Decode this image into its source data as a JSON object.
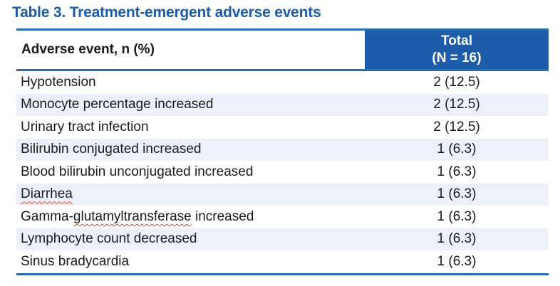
{
  "page": {
    "title": "Table 3. Treatment-emergent adverse events"
  },
  "colors": {
    "accent_blue": "#1D5CA8",
    "rule_blue": "#2A6AAE",
    "title_blue": "#1A5CA9",
    "row_stripe": "#ECF1F9",
    "spellcheck_red": "#E8402A",
    "body_text": "#1A1A1A",
    "header_text": "#FFFFFF"
  },
  "table": {
    "columns": {
      "event_header": "Adverse event, n (%)",
      "total_header_line1": "Total",
      "total_header_line2": "(N = 16)"
    },
    "rows": [
      {
        "event": "Hypotension",
        "value": "2 (12.5)"
      },
      {
        "event": "Monocyte percentage increased",
        "value": "2 (12.5)"
      },
      {
        "event": "Urinary tract infection",
        "value": "2 (12.5)"
      },
      {
        "event": "Bilirubin conjugated increased",
        "value": "1 (6.3)"
      },
      {
        "event": "Blood bilirubin unconjugated increased",
        "value": "1 (6.3)"
      },
      {
        "event": "Diarrhea",
        "value": "1 (6.3)",
        "spellcheck_flagged": "Diarrhea"
      },
      {
        "event_prefix": "Gamma-",
        "event_spellcheck": "glutamyltransferase",
        "event_suffix": " increased",
        "value": "1 (6.3)",
        "event": "Gamma-glutamyltransferase increased"
      },
      {
        "event": "Lymphocyte count decreased",
        "value": "1 (6.3)"
      },
      {
        "event": "Sinus bradycardia",
        "value": "1 (6.3)"
      }
    ]
  }
}
